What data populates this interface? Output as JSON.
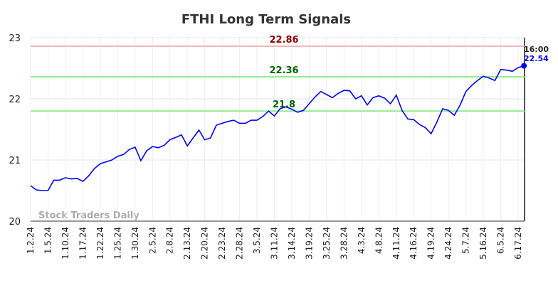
{
  "chart_data": {
    "type": "line",
    "title": "FTHI Long Term Signals",
    "categories": [
      "1.2.24",
      null,
      null,
      "1.5.24",
      null,
      null,
      "1.10.24",
      null,
      null,
      "1.17.24",
      null,
      null,
      "1.22.24",
      null,
      null,
      "1.25.24",
      null,
      null,
      "1.30.24",
      null,
      null,
      "2.5.24",
      null,
      null,
      "2.8.24",
      null,
      null,
      "2.13.24",
      null,
      null,
      "2.20.24",
      null,
      null,
      "2.23.24",
      null,
      null,
      "2.28.24",
      null,
      null,
      "3.5.24",
      null,
      null,
      "3.11.24",
      null,
      null,
      "3.14.24",
      null,
      null,
      "3.19.24",
      null,
      null,
      "3.25.24",
      null,
      null,
      "3.28.24",
      null,
      null,
      "4.3.24",
      null,
      null,
      "4.8.24",
      null,
      null,
      "4.11.24",
      null,
      null,
      "4.16.24",
      null,
      null,
      "4.19.24",
      null,
      null,
      "4.24.24",
      null,
      null,
      "5.7.24",
      null,
      null,
      "5.16.24",
      null,
      null,
      "6.5.24",
      null,
      null,
      "6.17.24",
      null
    ],
    "values": [
      20.58,
      20.51,
      20.5,
      20.5,
      20.67,
      20.67,
      20.71,
      20.69,
      20.7,
      20.65,
      20.74,
      20.86,
      20.94,
      20.97,
      21.0,
      21.06,
      21.09,
      21.17,
      21.21,
      20.99,
      21.15,
      21.22,
      21.2,
      21.24,
      21.33,
      21.37,
      21.41,
      21.23,
      21.36,
      21.49,
      21.33,
      21.36,
      21.57,
      21.6,
      21.63,
      21.65,
      21.6,
      21.6,
      21.65,
      21.65,
      21.71,
      21.8,
      21.72,
      21.84,
      21.87,
      21.83,
      21.78,
      21.81,
      21.92,
      22.03,
      22.12,
      22.07,
      22.02,
      22.09,
      22.14,
      22.13,
      22.0,
      22.05,
      21.9,
      22.02,
      22.05,
      22.01,
      21.92,
      22.06,
      21.81,
      21.67,
      21.66,
      21.58,
      21.53,
      21.43,
      21.62,
      21.84,
      21.81,
      21.73,
      21.9,
      22.12,
      22.22,
      22.3,
      22.37,
      22.34,
      22.3,
      22.48,
      22.47,
      22.45,
      22.51,
      22.54
    ],
    "color": "#0000ee",
    "ylim": [
      20,
      23
    ],
    "yticks": [
      20,
      21,
      22,
      23
    ],
    "grid": true,
    "reference_lines": [
      {
        "value": 22.86,
        "color": "#f4b6b6",
        "label_color": "#8b0000"
      },
      {
        "value": 22.36,
        "color": "#90ee90",
        "label_color": "#006400"
      },
      {
        "value": 21.8,
        "color": "#90ee90",
        "label_color": "#006400"
      }
    ],
    "last_time_label": "16:00",
    "watermark": "Stock Traders Daily"
  }
}
